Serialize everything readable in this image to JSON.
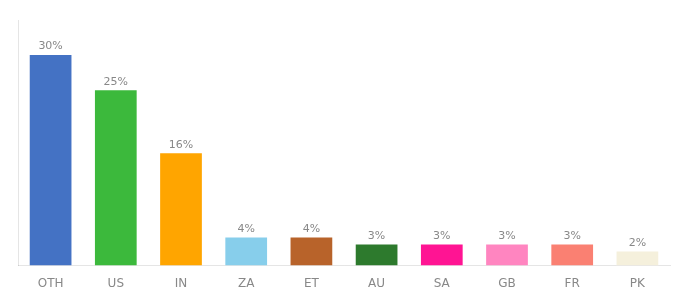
{
  "chart_data": {
    "type": "bar",
    "categories": [
      "OTH",
      "US",
      "IN",
      "ZA",
      "ET",
      "AU",
      "SA",
      "GB",
      "FR",
      "PK"
    ],
    "values": [
      30,
      25,
      16,
      4,
      4,
      3,
      3,
      3,
      3,
      2
    ],
    "value_labels": [
      "30%",
      "25%",
      "16%",
      "4%",
      "4%",
      "3%",
      "3%",
      "3%",
      "3%",
      "2%"
    ],
    "data_labels": true,
    "colors": [
      "#4472C4",
      "#3CB93C",
      "#FFA500",
      "#87CEEB",
      "#B8632A",
      "#2D7A2D",
      "#FF1493",
      "#FF85C0",
      "#FA8072",
      "#F5F0DC"
    ],
    "ylim": [
      0,
      35
    ],
    "grid": false,
    "tick_labels": "x"
  }
}
